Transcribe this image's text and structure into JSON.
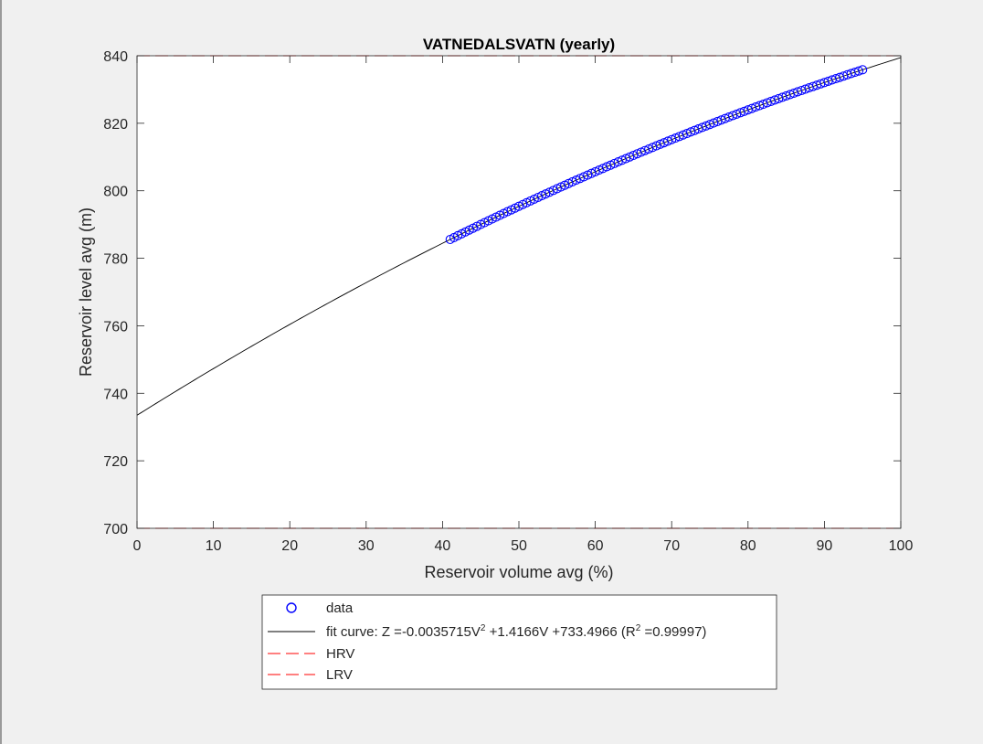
{
  "chart_data": {
    "type": "scatter",
    "title": "VATNEDALSVATN (yearly)",
    "xlabel": "Reservoir volume avg (%)",
    "ylabel": "Reservoir level avg (m)",
    "xlim": [
      0,
      100
    ],
    "ylim": [
      700,
      840
    ],
    "xticks": [
      0,
      10,
      20,
      30,
      40,
      50,
      60,
      70,
      80,
      90,
      100
    ],
    "yticks": [
      700,
      720,
      740,
      760,
      780,
      800,
      820,
      840
    ],
    "grid": false,
    "legend_placement": "bottom-outside",
    "colors": {
      "data": "#0000ff",
      "fit": "#000000",
      "hrv": "#ff0000",
      "lrv": "#ff0000",
      "background": "#f0f0f0",
      "axes_background": "#ffffff"
    },
    "series": [
      {
        "name": "data",
        "kind": "scatter",
        "marker": "circle-open",
        "x_range": [
          41,
          95
        ],
        "x": [
          41.0,
          41.5,
          42.0,
          42.5,
          43.0,
          43.5,
          44.0,
          44.5,
          45.0,
          45.5,
          46.0,
          46.5,
          47.0,
          47.5,
          48.0,
          48.5,
          49.0,
          49.5,
          50.0,
          50.5,
          51.0,
          51.5,
          52.0,
          52.5,
          53.0,
          53.5,
          54.0,
          54.5,
          55.0,
          55.5,
          56.0,
          56.5,
          57.0,
          57.5,
          58.0,
          58.5,
          59.0,
          59.5,
          60.0,
          60.5,
          61.0,
          61.5,
          62.0,
          62.5,
          63.0,
          63.5,
          64.0,
          64.5,
          65.0,
          65.5,
          66.0,
          66.5,
          67.0,
          67.5,
          68.0,
          68.5,
          69.0,
          69.5,
          70.0,
          70.5,
          71.0,
          71.5,
          72.0,
          72.5,
          73.0,
          73.5,
          74.0,
          74.5,
          75.0,
          75.5,
          76.0,
          76.5,
          77.0,
          77.5,
          78.0,
          78.5,
          79.0,
          79.5,
          80.0,
          80.5,
          81.0,
          81.5,
          82.0,
          82.5,
          83.0,
          83.5,
          84.0,
          84.5,
          85.0,
          85.5,
          86.0,
          86.5,
          87.0,
          87.5,
          88.0,
          88.5,
          89.0,
          89.5,
          90.0,
          90.5,
          91.0,
          91.5,
          92.0,
          92.5,
          93.0,
          93.5,
          94.0,
          94.5,
          95.0
        ]
      },
      {
        "name": "fit curve: Z =-0.0035715V² +1.4166V +733.4966 (R² =0.99997)",
        "kind": "line",
        "coefficients": {
          "a": -0.0035715,
          "b": 1.4166,
          "c": 733.4966
        },
        "r_squared": 0.99997,
        "x_range": [
          0,
          100
        ]
      },
      {
        "name": "HRV",
        "kind": "hline-dashed",
        "y": 840
      },
      {
        "name": "LRV",
        "kind": "hline-dashed",
        "y": 700
      }
    ]
  }
}
